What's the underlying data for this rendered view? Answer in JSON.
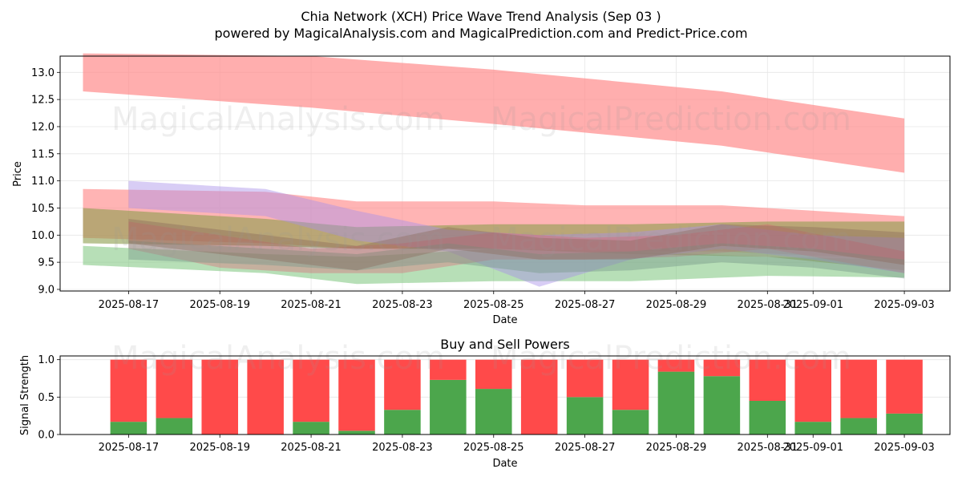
{
  "title": "Chia Network (XCH) Price Wave Trend Analysis (Sep 03 )",
  "subtitle": "powered by MagicalAnalysis.com and MagicalPrediction.com and Predict-Price.com",
  "watermarks": [
    "MagicalAnalysis.com",
    "MagicalPrediction.com"
  ],
  "colors": {
    "buy": "#4ca64c",
    "sell": "#ff4a4a",
    "red_band": "#ff8c8c"
  },
  "chart_data": [
    {
      "type": "area",
      "title": "",
      "xlabel": "Date",
      "ylabel": "Price",
      "ylim": [
        8.97,
        13.3
      ],
      "xlim": [
        "2025-08-15T12:00",
        "2025-09-04T00:00"
      ],
      "yticks": [
        "9.0",
        "9.5",
        "10.0",
        "10.5",
        "11.0",
        "11.5",
        "12.0",
        "12.5",
        "13.0"
      ],
      "xticks": [
        "2025-08-17",
        "2025-08-19",
        "2025-08-21",
        "2025-08-23",
        "2025-08-25",
        "2025-08-27",
        "2025-08-29",
        "2025-08-31",
        "2025-09-01",
        "2025-09-03"
      ],
      "grid": true,
      "series": [
        {
          "color": "#ff8c8c",
          "opacity": 0.7,
          "x": [
            "2025-08-16",
            "2025-08-21",
            "2025-08-25",
            "2025-08-30",
            "2025-09-03"
          ],
          "upper": [
            13.35,
            13.3,
            13.05,
            12.65,
            12.15
          ],
          "lower": [
            12.65,
            12.35,
            12.05,
            11.65,
            11.15
          ]
        },
        {
          "color": "#ff8c8c",
          "opacity": 0.65,
          "x": [
            "2025-08-16",
            "2025-08-20",
            "2025-08-22",
            "2025-08-25",
            "2025-08-27",
            "2025-08-30",
            "2025-09-03"
          ],
          "upper": [
            10.85,
            10.8,
            10.62,
            10.62,
            10.55,
            10.55,
            10.35
          ],
          "lower": [
            9.95,
            9.85,
            9.75,
            9.75,
            9.7,
            9.7,
            9.55
          ]
        },
        {
          "color": "#7cc47c",
          "opacity": 0.55,
          "x": [
            "2025-08-16",
            "2025-08-20",
            "2025-08-22",
            "2025-08-25",
            "2025-08-28",
            "2025-08-31",
            "2025-09-03"
          ],
          "upper": [
            9.8,
            9.65,
            9.6,
            9.75,
            9.7,
            9.6,
            9.55
          ],
          "lower": [
            9.45,
            9.3,
            9.1,
            9.15,
            9.15,
            9.25,
            9.22
          ]
        },
        {
          "color": "#8c9c4c",
          "opacity": 0.6,
          "x": [
            "2025-08-16",
            "2025-08-20",
            "2025-08-22",
            "2025-08-25",
            "2025-08-28",
            "2025-08-31",
            "2025-09-03"
          ],
          "upper": [
            10.5,
            10.3,
            10.15,
            10.2,
            10.2,
            10.25,
            10.25
          ],
          "lower": [
            9.85,
            9.8,
            9.75,
            9.75,
            9.65,
            9.6,
            9.35
          ]
        },
        {
          "color": "#a890e8",
          "opacity": 0.45,
          "x": [
            "2025-08-17",
            "2025-08-20",
            "2025-08-22",
            "2025-08-24",
            "2025-08-26",
            "2025-08-28",
            "2025-08-30",
            "2025-09-01",
            "2025-09-03"
          ],
          "upper": [
            11.0,
            10.85,
            10.45,
            10.1,
            10.0,
            10.05,
            10.2,
            10.0,
            9.95
          ],
          "lower": [
            10.5,
            10.35,
            9.9,
            9.7,
            9.05,
            9.55,
            9.75,
            9.55,
            9.3
          ]
        },
        {
          "color": "#e05a70",
          "opacity": 0.35,
          "x": [
            "2025-08-17",
            "2025-08-19",
            "2025-08-21",
            "2025-08-23",
            "2025-08-25",
            "2025-08-27",
            "2025-08-29",
            "2025-08-31",
            "2025-09-03"
          ],
          "upper": [
            10.25,
            10.0,
            9.75,
            9.85,
            10.05,
            9.95,
            10.0,
            10.2,
            9.7
          ],
          "lower": [
            9.75,
            9.4,
            9.3,
            9.3,
            9.55,
            9.55,
            9.6,
            9.75,
            9.3
          ]
        },
        {
          "color": "#7a9c8c",
          "opacity": 0.45,
          "x": [
            "2025-08-17",
            "2025-08-20",
            "2025-08-22",
            "2025-08-24",
            "2025-08-26",
            "2025-08-28",
            "2025-08-30",
            "2025-09-01",
            "2025-09-03"
          ],
          "upper": [
            9.9,
            9.75,
            9.65,
            9.85,
            9.65,
            9.7,
            9.85,
            9.75,
            9.55
          ],
          "lower": [
            9.55,
            9.45,
            9.35,
            9.5,
            9.3,
            9.35,
            9.5,
            9.4,
            9.2
          ]
        },
        {
          "color": "#8a6a5a",
          "opacity": 0.4,
          "x": [
            "2025-08-17",
            "2025-08-20",
            "2025-08-22",
            "2025-08-24",
            "2025-08-26",
            "2025-08-28",
            "2025-08-30",
            "2025-09-01",
            "2025-09-03"
          ],
          "upper": [
            10.3,
            10.0,
            9.8,
            10.15,
            9.95,
            9.9,
            10.2,
            10.15,
            10.05
          ],
          "lower": [
            9.85,
            9.55,
            9.35,
            9.75,
            9.55,
            9.55,
            9.8,
            9.7,
            9.45
          ]
        }
      ]
    },
    {
      "type": "bar",
      "title": "Buy and Sell Powers",
      "xlabel": "Date",
      "ylabel": "Signal Strength",
      "ylim": [
        0,
        1.05
      ],
      "yticks": [
        "0.0",
        "0.5",
        "1.0"
      ],
      "xticks": [
        "2025-08-17",
        "2025-08-19",
        "2025-08-21",
        "2025-08-23",
        "2025-08-25",
        "2025-08-27",
        "2025-08-29",
        "2025-08-31",
        "2025-09-01",
        "2025-09-03"
      ],
      "grid": true,
      "categories": [
        "2025-08-17",
        "2025-08-18",
        "2025-08-19",
        "2025-08-20",
        "2025-08-21",
        "2025-08-22",
        "2025-08-23",
        "2025-08-24",
        "2025-08-25",
        "2025-08-26",
        "2025-08-27",
        "2025-08-28",
        "2025-08-29",
        "2025-08-30",
        "2025-08-31",
        "2025-09-01",
        "2025-09-02",
        "2025-09-03"
      ],
      "series": [
        {
          "values": [
            0.17,
            0.22,
            0.0,
            0.0,
            0.17,
            0.05,
            0.33,
            0.73,
            0.61,
            0.0,
            0.5,
            0.33,
            0.84,
            0.78,
            0.45,
            0.17,
            0.22,
            0.28
          ]
        },
        {
          "values": [
            0.83,
            0.78,
            1.0,
            1.0,
            0.83,
            0.95,
            0.67,
            0.27,
            0.39,
            1.0,
            0.5,
            0.67,
            0.16,
            0.22,
            0.55,
            0.83,
            0.78,
            0.72
          ]
        }
      ]
    }
  ]
}
